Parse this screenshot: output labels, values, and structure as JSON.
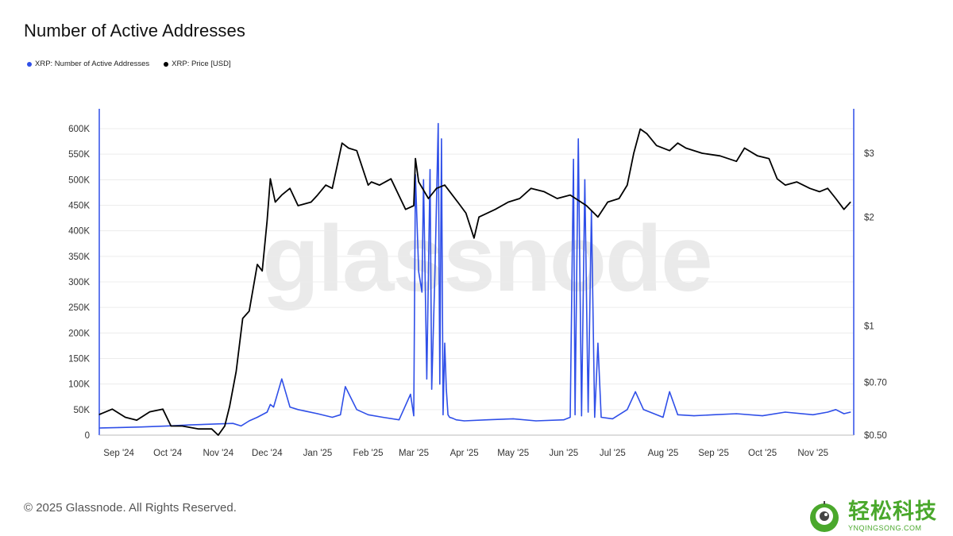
{
  "title": "Number of Active Addresses",
  "legend": [
    {
      "label": "XRP: Number of Active Addresses",
      "color": "#2f4fe8"
    },
    {
      "label": "XRP: Price [USD]",
      "color": "#000000"
    }
  ],
  "watermark": "glassnode",
  "footer": "© 2025 Glassnode. All Rights Reserved.",
  "brand": {
    "cn": "轻松科技",
    "en": "YNQINGSONG.COM",
    "color": "#4aa82c"
  },
  "chart_data": {
    "type": "line",
    "x_ticks": [
      "Sep '24",
      "Oct '24",
      "Nov '24",
      "Dec '24",
      "Jan '25",
      "Feb '25",
      "Mar '25",
      "Apr '25",
      "May '25",
      "Jun '25",
      "Jul '25",
      "Aug '25",
      "Sep '25",
      "Oct '25",
      "Nov '25"
    ],
    "y_left": {
      "ticks": [
        "0",
        "50K",
        "100K",
        "150K",
        "200K",
        "250K",
        "300K",
        "350K",
        "400K",
        "450K",
        "500K",
        "550K",
        "600K"
      ],
      "range": [
        0,
        600000
      ]
    },
    "y_right": {
      "scale": "log",
      "ticks": [
        "$0.50",
        "$0.70",
        "$1",
        "$2",
        "$3"
      ],
      "tick_values": [
        0.5,
        0.7,
        1,
        2,
        3
      ],
      "range": [
        0.5,
        3.5
      ]
    },
    "grid": true,
    "legend_position": "top-left",
    "series": [
      {
        "name": "XRP: Number of Active Addresses",
        "axis": "left",
        "color": "#2f4fe8",
        "x": [
          "2024-08-20",
          "2024-09-01",
          "2024-09-15",
          "2024-10-01",
          "2024-10-15",
          "2024-11-01",
          "2024-11-10",
          "2024-11-15",
          "2024-11-20",
          "2024-11-25",
          "2024-12-01",
          "2024-12-03",
          "2024-12-05",
          "2024-12-10",
          "2024-12-15",
          "2024-12-20",
          "2025-01-01",
          "2025-01-10",
          "2025-01-15",
          "2025-01-18",
          "2025-01-25",
          "2025-02-01",
          "2025-02-10",
          "2025-02-20",
          "2025-02-27",
          "2025-03-01",
          "2025-03-02",
          "2025-03-04",
          "2025-03-06",
          "2025-03-07",
          "2025-03-09",
          "2025-03-11",
          "2025-03-12",
          "2025-03-14",
          "2025-03-16",
          "2025-03-17",
          "2025-03-18",
          "2025-03-19",
          "2025-03-20",
          "2025-03-21",
          "2025-03-22",
          "2025-03-23",
          "2025-03-25",
          "2025-03-27",
          "2025-04-01",
          "2025-04-15",
          "2025-05-01",
          "2025-05-15",
          "2025-06-01",
          "2025-06-05",
          "2025-06-07",
          "2025-06-08",
          "2025-06-10",
          "2025-06-12",
          "2025-06-14",
          "2025-06-16",
          "2025-06-18",
          "2025-06-20",
          "2025-06-22",
          "2025-06-24",
          "2025-07-01",
          "2025-07-10",
          "2025-07-15",
          "2025-07-20",
          "2025-08-01",
          "2025-08-05",
          "2025-08-10",
          "2025-08-20",
          "2025-09-01",
          "2025-09-15",
          "2025-10-01",
          "2025-10-15",
          "2025-11-01",
          "2025-11-10",
          "2025-11-15",
          "2025-11-20",
          "2025-11-24"
        ],
        "y": [
          14000,
          15000,
          16000,
          18000,
          20000,
          22000,
          23000,
          18000,
          28000,
          35000,
          45000,
          60000,
          55000,
          110000,
          55000,
          50000,
          42000,
          35000,
          40000,
          95000,
          50000,
          40000,
          35000,
          30000,
          80000,
          38000,
          510000,
          320000,
          280000,
          500000,
          110000,
          520000,
          90000,
          320000,
          610000,
          100000,
          580000,
          40000,
          180000,
          90000,
          40000,
          35000,
          33000,
          30000,
          28000,
          30000,
          32000,
          28000,
          30000,
          35000,
          540000,
          40000,
          580000,
          38000,
          500000,
          45000,
          440000,
          35000,
          180000,
          35000,
          32000,
          50000,
          85000,
          50000,
          35000,
          85000,
          40000,
          38000,
          40000,
          42000,
          38000,
          45000,
          40000,
          45000,
          50000,
          42000,
          45000
        ]
      },
      {
        "name": "XRP: Price [USD]",
        "axis": "right",
        "color": "#000000",
        "x": [
          "2024-08-20",
          "2024-08-28",
          "2024-09-05",
          "2024-09-12",
          "2024-09-20",
          "2024-09-28",
          "2024-10-03",
          "2024-10-10",
          "2024-10-20",
          "2024-10-28",
          "2024-11-01",
          "2024-11-05",
          "2024-11-08",
          "2024-11-12",
          "2024-11-16",
          "2024-11-20",
          "2024-11-25",
          "2024-11-28",
          "2024-12-01",
          "2024-12-03",
          "2024-12-06",
          "2024-12-10",
          "2024-12-15",
          "2024-12-20",
          "2024-12-28",
          "2025-01-01",
          "2025-01-06",
          "2025-01-10",
          "2025-01-16",
          "2025-01-20",
          "2025-01-25",
          "2025-02-01",
          "2025-02-03",
          "2025-02-08",
          "2025-02-15",
          "2025-02-24",
          "2025-03-01",
          "2025-03-02",
          "2025-03-04",
          "2025-03-10",
          "2025-03-15",
          "2025-03-20",
          "2025-03-28",
          "2025-04-02",
          "2025-04-07",
          "2025-04-10",
          "2025-04-20",
          "2025-04-28",
          "2025-05-05",
          "2025-05-12",
          "2025-05-20",
          "2025-05-28",
          "2025-06-05",
          "2025-06-15",
          "2025-06-22",
          "2025-06-28",
          "2025-07-05",
          "2025-07-10",
          "2025-07-14",
          "2025-07-18",
          "2025-07-22",
          "2025-07-28",
          "2025-08-05",
          "2025-08-10",
          "2025-08-15",
          "2025-08-25",
          "2025-09-05",
          "2025-09-15",
          "2025-09-20",
          "2025-09-28",
          "2025-10-05",
          "2025-10-10",
          "2025-10-15",
          "2025-10-22",
          "2025-10-30",
          "2025-11-05",
          "2025-11-10",
          "2025-11-15",
          "2025-11-20",
          "2025-11-24"
        ],
        "y": [
          0.57,
          0.59,
          0.56,
          0.55,
          0.58,
          0.59,
          0.53,
          0.53,
          0.52,
          0.52,
          0.5,
          0.53,
          0.6,
          0.75,
          1.05,
          1.1,
          1.48,
          1.42,
          1.95,
          2.55,
          2.2,
          2.3,
          2.4,
          2.15,
          2.2,
          2.3,
          2.45,
          2.4,
          3.2,
          3.1,
          3.05,
          2.45,
          2.5,
          2.45,
          2.55,
          2.1,
          2.15,
          2.9,
          2.5,
          2.25,
          2.4,
          2.45,
          2.2,
          2.05,
          1.75,
          2.0,
          2.1,
          2.2,
          2.25,
          2.4,
          2.35,
          2.25,
          2.3,
          2.15,
          2.0,
          2.2,
          2.25,
          2.45,
          3.0,
          3.5,
          3.4,
          3.15,
          3.05,
          3.2,
          3.1,
          3.0,
          2.95,
          2.85,
          3.1,
          2.95,
          2.9,
          2.55,
          2.45,
          2.5,
          2.4,
          2.35,
          2.4,
          2.25,
          2.1,
          2.2
        ]
      }
    ]
  }
}
